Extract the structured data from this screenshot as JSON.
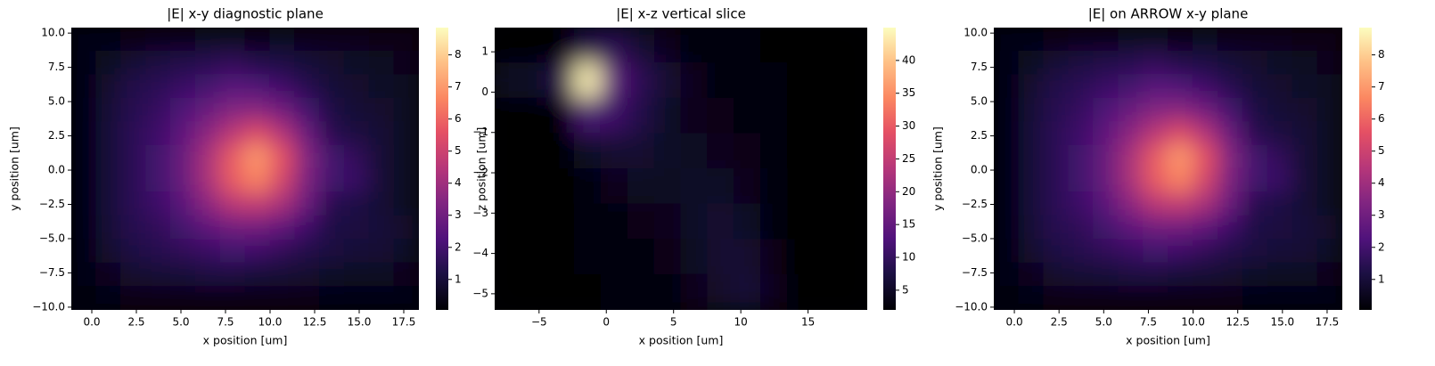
{
  "chart_data": [
    {
      "type": "heatmap",
      "title": "|E| x-y diagnostic plane",
      "xlabel": "x position [um]",
      "ylabel": "y position [um]",
      "colormap": "magma",
      "xlim": [
        -1.15,
        18.35
      ],
      "ylim": [
        -10.2,
        10.4
      ],
      "clim": [
        0.05,
        8.85
      ],
      "xticks": [
        {
          "value": 0,
          "label": "0.0"
        },
        2.5,
        {
          "value": 5,
          "label": "5.0"
        },
        7.5,
        {
          "value": 10,
          "label": "10.0"
        },
        12.5,
        {
          "value": 15,
          "label": "15.0"
        },
        17.5
      ],
      "yticks": [
        {
          "value": -10,
          "label": "−10.0"
        },
        {
          "value": -7.5,
          "label": "−7.5"
        },
        {
          "value": -5,
          "label": "−5.0"
        },
        {
          "value": -2.5,
          "label": "−2.5"
        },
        {
          "value": 0,
          "label": "0.0"
        },
        2.5,
        {
          "value": 5,
          "label": "5.0"
        },
        7.5,
        {
          "value": 10,
          "label": "10.0"
        }
      ],
      "cticks": [
        1,
        2,
        3,
        4,
        5,
        6,
        7,
        8
      ],
      "z": [
        [
          0.3,
          0.3,
          0.4,
          0.5,
          0.5,
          0.6,
          0.6,
          0.5,
          0.6,
          0.5,
          0.5,
          0.5,
          0.4,
          0.4
        ],
        [
          0.3,
          0.6,
          0.9,
          1.1,
          1.3,
          1.4,
          1.6,
          1.3,
          1.2,
          1.0,
          0.8,
          0.7,
          0.6,
          0.5
        ],
        [
          0.3,
          0.8,
          1.3,
          1.5,
          1.8,
          2.0,
          2.4,
          2.2,
          1.9,
          1.4,
          1.0,
          0.8,
          0.7,
          0.6
        ],
        [
          0.3,
          0.9,
          1.4,
          1.7,
          2.2,
          2.8,
          3.4,
          3.5,
          3.0,
          2.0,
          1.2,
          0.9,
          0.8,
          0.6
        ],
        [
          0.3,
          1.0,
          1.5,
          1.9,
          2.6,
          3.6,
          4.6,
          5.4,
          4.4,
          2.8,
          1.4,
          1.1,
          0.9,
          0.6
        ],
        [
          0.3,
          1.0,
          1.5,
          2.0,
          2.8,
          4.2,
          5.8,
          7.0,
          5.6,
          3.4,
          2.0,
          1.6,
          0.9,
          0.6
        ],
        [
          0.3,
          1.0,
          1.5,
          2.0,
          2.8,
          4.2,
          5.8,
          6.6,
          5.2,
          3.2,
          2.0,
          1.8,
          0.9,
          0.6
        ],
        [
          0.3,
          1.0,
          1.5,
          1.9,
          2.5,
          3.6,
          4.6,
          4.8,
          4.2,
          2.8,
          1.4,
          1.2,
          0.9,
          0.6
        ],
        [
          0.3,
          0.9,
          1.4,
          1.6,
          2.0,
          2.6,
          3.0,
          3.0,
          2.6,
          1.9,
          1.2,
          1.1,
          1.0,
          0.8
        ],
        [
          0.3,
          0.8,
          1.2,
          1.4,
          1.6,
          1.8,
          2.0,
          1.9,
          1.6,
          1.3,
          1.1,
          1.0,
          0.9,
          0.7
        ],
        [
          0.3,
          0.5,
          0.8,
          0.9,
          1.0,
          1.1,
          1.1,
          1.0,
          0.9,
          0.8,
          0.7,
          0.6,
          0.6,
          0.5
        ],
        [
          0.2,
          0.3,
          0.4,
          0.4,
          0.4,
          0.4,
          0.4,
          0.4,
          0.4,
          0.4,
          0.3,
          0.3,
          0.3,
          0.3
        ]
      ]
    },
    {
      "type": "heatmap",
      "title": "|E| x-z vertical slice",
      "xlabel": "x position [um]",
      "ylabel": "z position [um]",
      "colormap": "magma",
      "xlim": [
        -8.3,
        19.4
      ],
      "ylim": [
        -5.4,
        1.6
      ],
      "clim": [
        2.0,
        45
      ],
      "xticks": [
        {
          "value": -5,
          "label": "−5"
        },
        0,
        5,
        10,
        15
      ],
      "yticks": [
        {
          "value": -5,
          "label": "−5"
        },
        {
          "value": -4,
          "label": "−4"
        },
        {
          "value": -3,
          "label": "−3"
        },
        {
          "value": -2,
          "label": "−2"
        },
        {
          "value": -1,
          "label": "−1"
        },
        0,
        1
      ],
      "cticks": [
        5,
        10,
        15,
        20,
        25,
        30,
        35,
        40
      ],
      "z": [
        [
          2,
          2,
          2,
          8,
          9,
          6,
          4,
          3,
          3,
          2.5,
          2,
          2,
          2,
          2
        ],
        [
          5,
          5,
          8,
          44,
          14,
          9,
          6,
          4,
          3,
          3,
          2.5,
          2,
          2,
          2
        ],
        [
          2,
          2,
          2,
          12,
          11,
          8,
          5,
          4,
          3.5,
          3,
          2.5,
          2,
          2,
          2
        ],
        [
          2,
          2,
          2,
          5,
          6,
          6,
          5,
          4.5,
          4,
          3.5,
          3,
          2,
          2,
          2
        ],
        [
          2,
          2,
          2,
          3,
          4,
          4.5,
          4.5,
          5,
          5,
          4,
          3,
          2,
          2,
          2
        ],
        [
          2,
          2,
          2,
          2.5,
          3,
          3.5,
          4,
          5,
          6,
          5,
          3,
          2,
          2,
          2
        ],
        [
          2,
          2,
          2,
          2.5,
          2.5,
          3,
          3.5,
          4.5,
          6,
          6,
          3.5,
          2,
          2,
          2
        ],
        [
          2,
          2,
          2,
          2,
          2.5,
          2.5,
          3,
          4,
          5.5,
          6.5,
          4,
          2,
          2,
          2
        ]
      ]
    },
    {
      "type": "heatmap",
      "title": "|E| on ARROW x-y plane",
      "xlabel": "x position [um]",
      "ylabel": "y position [um]",
      "colormap": "magma",
      "xlim": [
        -1.15,
        18.35
      ],
      "ylim": [
        -10.2,
        10.4
      ],
      "clim": [
        0.05,
        8.85
      ],
      "xticks": [
        {
          "value": 0,
          "label": "0.0"
        },
        2.5,
        {
          "value": 5,
          "label": "5.0"
        },
        7.5,
        {
          "value": 10,
          "label": "10.0"
        },
        12.5,
        {
          "value": 15,
          "label": "15.0"
        },
        17.5
      ],
      "yticks": [
        {
          "value": -10,
          "label": "−10.0"
        },
        {
          "value": -7.5,
          "label": "−7.5"
        },
        {
          "value": -5,
          "label": "−5.0"
        },
        {
          "value": -2.5,
          "label": "−2.5"
        },
        {
          "value": 0,
          "label": "0.0"
        },
        2.5,
        {
          "value": 5,
          "label": "5.0"
        },
        7.5,
        {
          "value": 10,
          "label": "10.0"
        }
      ],
      "cticks": [
        1,
        2,
        3,
        4,
        5,
        6,
        7,
        8
      ],
      "z": [
        [
          0.3,
          0.3,
          0.4,
          0.5,
          0.5,
          0.6,
          0.6,
          0.5,
          0.6,
          0.5,
          0.5,
          0.5,
          0.4,
          0.4
        ],
        [
          0.3,
          0.6,
          0.9,
          1.1,
          1.3,
          1.4,
          1.6,
          1.3,
          1.2,
          1.0,
          0.8,
          0.7,
          0.6,
          0.5
        ],
        [
          0.3,
          0.8,
          1.3,
          1.5,
          1.8,
          2.0,
          2.4,
          2.2,
          1.9,
          1.4,
          1.0,
          0.8,
          0.7,
          0.6
        ],
        [
          0.3,
          0.9,
          1.4,
          1.7,
          2.2,
          2.8,
          3.4,
          3.5,
          3.0,
          2.0,
          1.2,
          0.9,
          0.8,
          0.6
        ],
        [
          0.3,
          1.0,
          1.5,
          1.9,
          2.6,
          3.6,
          4.6,
          5.4,
          4.4,
          2.8,
          1.4,
          1.1,
          0.9,
          0.6
        ],
        [
          0.3,
          1.0,
          1.5,
          2.0,
          2.8,
          4.2,
          5.8,
          7.0,
          5.6,
          3.4,
          2.0,
          1.6,
          0.9,
          0.6
        ],
        [
          0.3,
          1.0,
          1.5,
          2.0,
          2.8,
          4.2,
          5.8,
          6.6,
          5.2,
          3.2,
          2.0,
          1.8,
          0.9,
          0.6
        ],
        [
          0.3,
          1.0,
          1.5,
          1.9,
          2.5,
          3.6,
          4.6,
          4.8,
          4.2,
          2.8,
          1.4,
          1.2,
          0.9,
          0.6
        ],
        [
          0.3,
          0.9,
          1.4,
          1.6,
          2.0,
          2.6,
          3.0,
          3.0,
          2.6,
          1.9,
          1.2,
          1.1,
          1.0,
          0.8
        ],
        [
          0.3,
          0.8,
          1.2,
          1.4,
          1.6,
          1.8,
          2.0,
          1.9,
          1.6,
          1.3,
          1.1,
          1.0,
          0.9,
          0.7
        ],
        [
          0.3,
          0.5,
          0.8,
          0.9,
          1.0,
          1.1,
          1.1,
          1.0,
          0.9,
          0.8,
          0.7,
          0.6,
          0.6,
          0.5
        ],
        [
          0.2,
          0.3,
          0.4,
          0.4,
          0.4,
          0.4,
          0.4,
          0.4,
          0.4,
          0.4,
          0.3,
          0.3,
          0.3,
          0.3
        ]
      ]
    }
  ]
}
